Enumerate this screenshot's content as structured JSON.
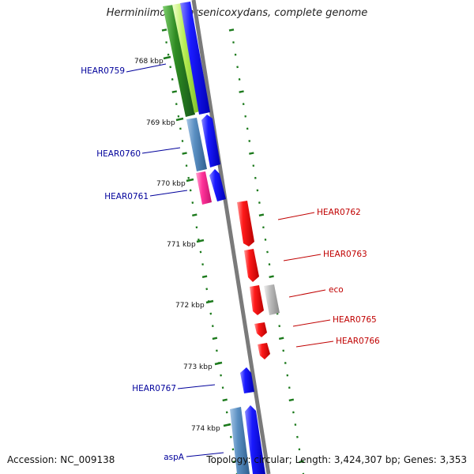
{
  "title": "Herminiimonas arsenicoxydans, complete genome",
  "accession": "Accession: NC_009138",
  "topology": "Topology: circular; Length: 3,424,307 bp; Genes: 3,353",
  "colors": {
    "forward_label": "#00009b",
    "reverse_label": "#c00000",
    "backbone": "#808080",
    "tick": "#1c7a1c",
    "blue_gene": "#0000e6",
    "red_gene": "#ee0000",
    "steel": "#4682b4",
    "green": "#2e8b22",
    "lime": "#99dd33",
    "pink": "#ff3399",
    "grey": "#b0b0b0"
  },
  "ruler": [
    {
      "label": "768 kbp"
    },
    {
      "label": "769 kbp"
    },
    {
      "label": "770 kbp"
    },
    {
      "label": "771 kbp"
    },
    {
      "label": "772 kbp"
    },
    {
      "label": "773 kbp"
    },
    {
      "label": "774 kbp"
    }
  ],
  "gene_labels": [
    {
      "name": "HEAR0759",
      "strand": "forward"
    },
    {
      "name": "HEAR0760",
      "strand": "forward"
    },
    {
      "name": "HEAR0761",
      "strand": "forward"
    },
    {
      "name": "HEAR0762",
      "strand": "reverse"
    },
    {
      "name": "HEAR0763",
      "strand": "reverse"
    },
    {
      "name": "eco",
      "strand": "reverse"
    },
    {
      "name": "HEAR0765",
      "strand": "reverse"
    },
    {
      "name": "HEAR0766",
      "strand": "reverse"
    },
    {
      "name": "HEAR0767",
      "strand": "forward"
    },
    {
      "name": "aspA",
      "strand": "forward"
    }
  ]
}
